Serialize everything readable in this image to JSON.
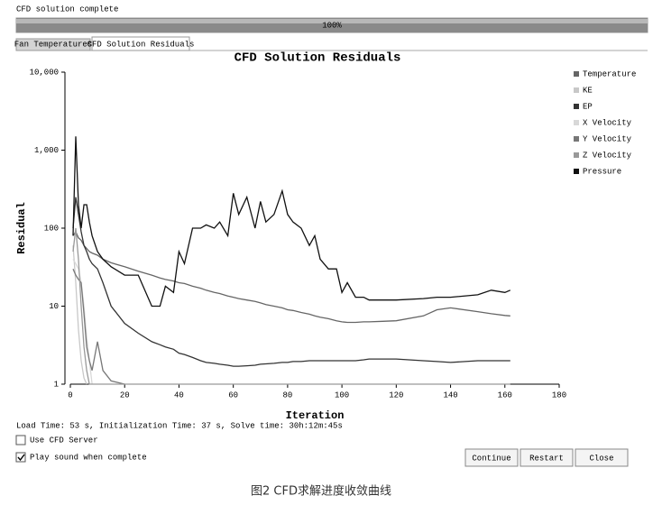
{
  "status": "CFD solution complete",
  "progress": {
    "label": "100%",
    "value": 100
  },
  "tabs": [
    "Fan Temperatures",
    "CFD Solution Residuals"
  ],
  "chart_data": {
    "type": "line",
    "title": "CFD Solution Residuals",
    "x_label": "Iteration",
    "y_label": "Residual",
    "xlim": [
      0,
      180
    ],
    "xticks": [
      0,
      20,
      40,
      60,
      80,
      100,
      120,
      140,
      160,
      180
    ],
    "ylim": [
      1,
      10000
    ],
    "ylog": true,
    "yticks": [
      1,
      10,
      100,
      {
        "value": 1000,
        "label": "1,000"
      },
      {
        "value": 10000,
        "label": "10,000"
      }
    ],
    "legend": "right",
    "x": [
      1,
      2,
      3,
      4,
      5,
      6,
      7,
      8,
      10,
      12,
      15,
      20,
      25,
      30,
      33,
      35,
      38,
      40,
      42,
      45,
      48,
      50,
      53,
      55,
      58,
      60,
      62,
      65,
      68,
      70,
      72,
      75,
      78,
      80,
      82,
      85,
      88,
      90,
      92,
      95,
      98,
      100,
      102,
      105,
      108,
      110,
      115,
      120,
      130,
      135,
      140,
      150,
      155,
      160,
      162
    ],
    "series": [
      {
        "name": "Temperature",
        "color": "#666666",
        "values": [
          80,
          90,
          75,
          70,
          60,
          55,
          50,
          48,
          45,
          40,
          36,
          32,
          28,
          25,
          23,
          22,
          21,
          20,
          19.5,
          18,
          17,
          16,
          15,
          14.5,
          13.5,
          13,
          12.5,
          12,
          11.5,
          11,
          10.5,
          10,
          9.5,
          9,
          8.8,
          8.3,
          7.9,
          7.5,
          7.2,
          6.9,
          6.5,
          6.3,
          6.2,
          6.2,
          6.3,
          6.3,
          6.4,
          6.5,
          7.5,
          9,
          9.5,
          8.5,
          8,
          7.6,
          7.5
        ]
      },
      {
        "name": "KE",
        "color": "#c8c8c8",
        "values": [
          60,
          20,
          5,
          2,
          1.2,
          1,
          null,
          null,
          null,
          null,
          null,
          null,
          null,
          null,
          null,
          null,
          null,
          null,
          null,
          null,
          null,
          null,
          null,
          null,
          null,
          null,
          null,
          null,
          null,
          null,
          null,
          null,
          null,
          null,
          null,
          null,
          null,
          null,
          null,
          null,
          null,
          null,
          null,
          null,
          null,
          null,
          null,
          null,
          null,
          null,
          null,
          null,
          null,
          null,
          null
        ]
      },
      {
        "name": "EP",
        "color": "#333333",
        "values": [
          100,
          250,
          150,
          90,
          60,
          50,
          40,
          35,
          30,
          20,
          10,
          6,
          4.5,
          3.5,
          3.2,
          3,
          2.8,
          2.5,
          2.4,
          2.2,
          2,
          1.9,
          1.85,
          1.8,
          1.75,
          1.7,
          1.7,
          1.72,
          1.75,
          1.8,
          1.82,
          1.85,
          1.9,
          1.9,
          1.95,
          1.95,
          2,
          2,
          2,
          2,
          2,
          2,
          2,
          2,
          2.05,
          2.1,
          2.1,
          2.1,
          2,
          1.95,
          1.9,
          2,
          2,
          2,
          2
        ]
      },
      {
        "name": "X Velocity",
        "color": "#d8d8d8",
        "values": [
          40,
          35,
          30,
          20,
          10,
          4,
          2,
          1,
          null,
          null,
          null,
          null,
          null,
          null,
          null,
          null,
          null,
          null,
          null,
          null,
          null,
          null,
          null,
          null,
          null,
          null,
          null,
          null,
          null,
          null,
          null,
          null,
          null,
          null,
          null,
          null,
          null,
          null,
          null,
          null,
          null,
          null,
          null,
          null,
          null,
          null,
          null,
          null,
          null,
          null,
          null,
          null,
          null,
          null,
          null
        ]
      },
      {
        "name": "Y Velocity",
        "color": "#777777",
        "values": [
          30,
          25,
          22,
          20,
          8,
          3,
          2,
          1.5,
          3.5,
          1.5,
          1.1,
          1,
          null,
          null,
          null,
          null,
          null,
          null,
          null,
          null,
          null,
          null,
          null,
          null,
          null,
          null,
          null,
          null,
          null,
          null,
          null,
          null,
          null,
          null,
          null,
          null,
          null,
          null,
          null,
          null,
          null,
          null,
          null,
          null,
          null,
          null,
          null,
          null,
          null,
          null,
          null,
          null,
          null,
          null,
          null
        ]
      },
      {
        "name": "Z Velocity",
        "color": "#999999",
        "values": [
          50,
          100,
          40,
          10,
          3,
          1.5,
          1,
          1,
          1,
          1,
          1,
          1,
          1,
          1,
          1,
          1,
          1,
          1,
          1,
          1,
          1,
          1,
          1,
          1,
          1,
          1,
          1,
          1,
          1,
          1,
          1,
          1,
          1,
          1,
          1,
          1,
          1,
          1,
          1,
          1,
          1,
          1,
          1,
          1,
          1,
          1,
          1,
          1,
          1,
          1,
          1,
          1,
          1,
          1,
          1
        ]
      },
      {
        "name": "Pressure",
        "color": "#111111",
        "values": [
          80,
          1500,
          200,
          100,
          200,
          200,
          120,
          80,
          50,
          40,
          32,
          25,
          25,
          10,
          10,
          18,
          15,
          50,
          35,
          100,
          100,
          110,
          100,
          120,
          80,
          280,
          150,
          250,
          100,
          220,
          120,
          150,
          300,
          150,
          120,
          100,
          60,
          80,
          40,
          30,
          30,
          15,
          20,
          13,
          13,
          12,
          12,
          12,
          12.5,
          13,
          13,
          14,
          16,
          15,
          16
        ]
      }
    ]
  },
  "load_info": "Load Time: 53 s, Initialization Time: 37 s, Solve time: 30h:12m:45s",
  "checkboxes": [
    {
      "label": "Use CFD Server",
      "checked": false
    },
    {
      "label": "Play sound when complete",
      "checked": true
    }
  ],
  "buttons": [
    "Continue",
    "Restart",
    "Close"
  ],
  "caption": "图2 CFD求解进度收敛曲线"
}
